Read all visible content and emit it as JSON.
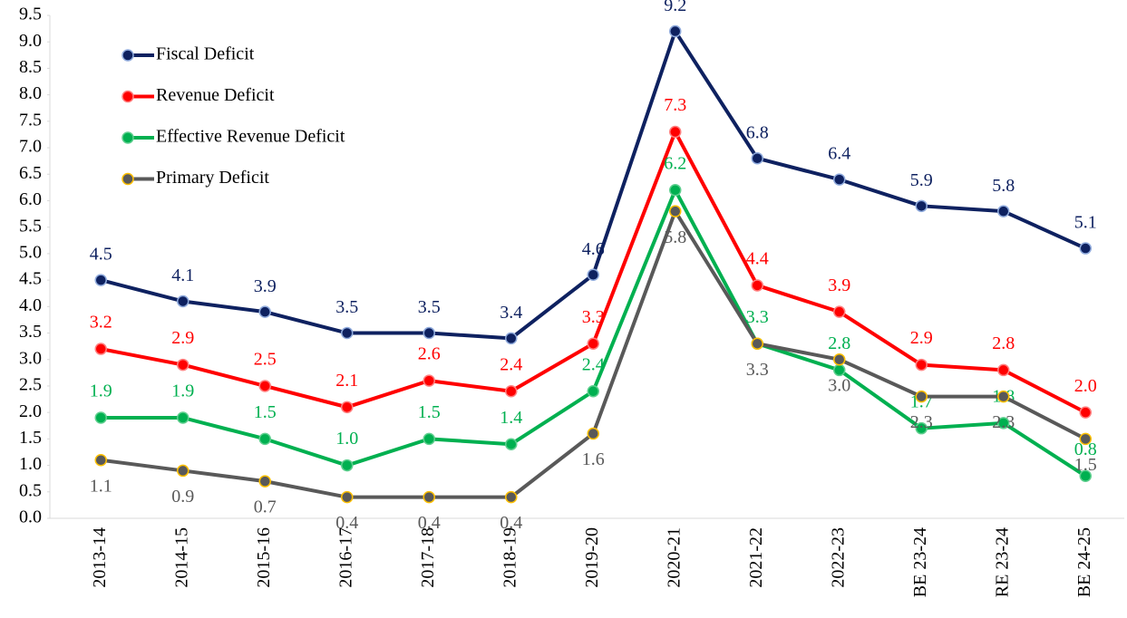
{
  "chart_data": {
    "type": "line",
    "categories": [
      "2013-14",
      "2014-15",
      "2015-16",
      "2016-17",
      "2017-18",
      "2018-19",
      "2019-20",
      "2020-21",
      "2021-22",
      "2022-23",
      "BE 23-24",
      "RE 23-24",
      "BE 24-25"
    ],
    "series": [
      {
        "name": "Fiscal Deficit",
        "color": "#0e2160",
        "values": [
          4.5,
          4.1,
          3.9,
          3.5,
          3.5,
          3.4,
          4.6,
          9.2,
          6.8,
          6.4,
          5.9,
          5.8,
          5.1
        ],
        "value_labels": [
          "4.5",
          "4.1",
          "3.9",
          "3.5",
          "3.5",
          "3.4",
          "4.6",
          "9.2",
          "6.8",
          "6.4",
          "5.9",
          "5.8",
          "5.1"
        ]
      },
      {
        "name": "Revenue Deficit",
        "color": "#ff0000",
        "values": [
          3.2,
          2.9,
          2.5,
          2.1,
          2.6,
          2.4,
          3.3,
          7.3,
          4.4,
          3.9,
          2.9,
          2.8,
          2.0
        ],
        "value_labels": [
          "3.2",
          "2.9",
          "2.5",
          "2.1",
          "2.6",
          "2.4",
          "3.3",
          "7.3",
          "4.4",
          "3.9",
          "2.9",
          "2.8",
          "2.0"
        ]
      },
      {
        "name": "Effective Revenue Deficit",
        "color": "#00b050",
        "values": [
          1.9,
          1.9,
          1.5,
          1.0,
          1.5,
          1.4,
          2.4,
          6.2,
          3.3,
          2.8,
          1.7,
          1.8,
          0.8
        ],
        "value_labels": [
          "1.9",
          "1.9",
          "1.5",
          "1.0",
          "1.5",
          "1.4",
          "2.4",
          "6.2",
          "3.3",
          "2.8",
          "1.7",
          "1.8",
          "0.8"
        ]
      },
      {
        "name": "Primary Deficit",
        "color": "#595959",
        "values": [
          1.1,
          0.9,
          0.7,
          0.4,
          0.4,
          0.4,
          1.6,
          5.8,
          3.3,
          3.0,
          2.3,
          2.3,
          1.5
        ],
        "value_labels": [
          "1.1",
          "0.9",
          "0.7",
          "0.4",
          "0.4",
          "0.4",
          "1.6",
          "5.8",
          "3.3",
          "3.0",
          "2.3",
          "2.3",
          "1.5"
        ]
      }
    ],
    "ylim": [
      0,
      9.5
    ],
    "yticks": [
      {
        "value": 0,
        "label": "0.0"
      },
      0.5,
      {
        "value": 1,
        "label": "1.0"
      },
      1.5,
      {
        "value": 2,
        "label": "2.0"
      },
      2.5,
      {
        "value": 3,
        "label": "3.0"
      },
      3.5,
      {
        "value": 4,
        "label": "4.0"
      },
      4.5,
      {
        "value": 5,
        "label": "5.0"
      },
      5.5,
      {
        "value": 6,
        "label": "6.0"
      },
      6.5,
      {
        "value": 7,
        "label": "7.0"
      },
      7.5,
      {
        "value": 8,
        "label": "8.0"
      },
      8.5,
      {
        "value": 9,
        "label": "9.0"
      },
      9.5
    ],
    "legend": "top-left"
  }
}
